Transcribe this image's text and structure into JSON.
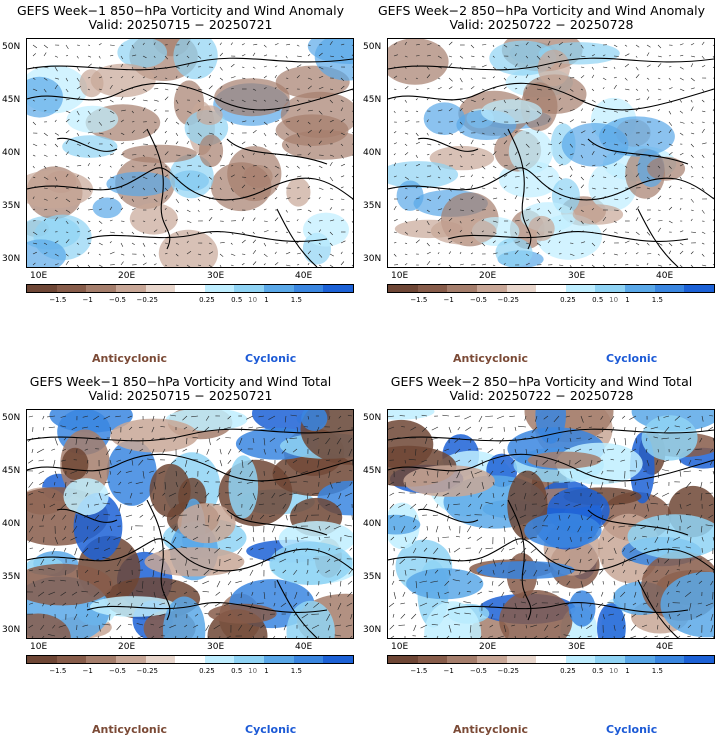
{
  "panels": [
    {
      "title": "GEFS Week−1 850−hPa Vorticity and Wind Anomaly",
      "valid": "Valid: 20250715 − 20250721",
      "type": "anomaly"
    },
    {
      "title": "GEFS Week−2 850−hPa Vorticity and Wind Anomaly",
      "valid": "Valid: 20250722 − 20250728",
      "type": "anomaly"
    },
    {
      "title": "GEFS Week−1 850−hPa Vorticity and Wind Total",
      "valid": "Valid: 20250715 − 20250721",
      "type": "total"
    },
    {
      "title": "GEFS Week−2 850−hPa Vorticity and Wind Total",
      "valid": "Valid: 20250722 − 20250728",
      "type": "total"
    }
  ],
  "lat_labels": [
    "50N",
    "45N",
    "40N",
    "35N",
    "30N"
  ],
  "lon_labels": [
    "10E",
    "20E",
    "30E",
    "40E"
  ],
  "colorbar": {
    "labels": [
      "−1.5",
      "−1",
      "−0.5",
      "−0.25",
      "0.25",
      "0.5",
      "1",
      "1.5"
    ],
    "scale_note": "10",
    "colors": [
      "#6e4635",
      "#875c4a",
      "#a57e6c",
      "#c8a797",
      "#e8d6cc",
      "#ffffff",
      "#bfeeff",
      "#8fd3f4",
      "#5aa8e8",
      "#3a86e0",
      "#1c61d6"
    ]
  },
  "legend": {
    "anticyclonic": "Anticyclonic",
    "cyclonic": "Cyclonic"
  },
  "colors": {
    "anticyclonic": "#7b4a36",
    "cyclonic": "#1c5ad6"
  }
}
